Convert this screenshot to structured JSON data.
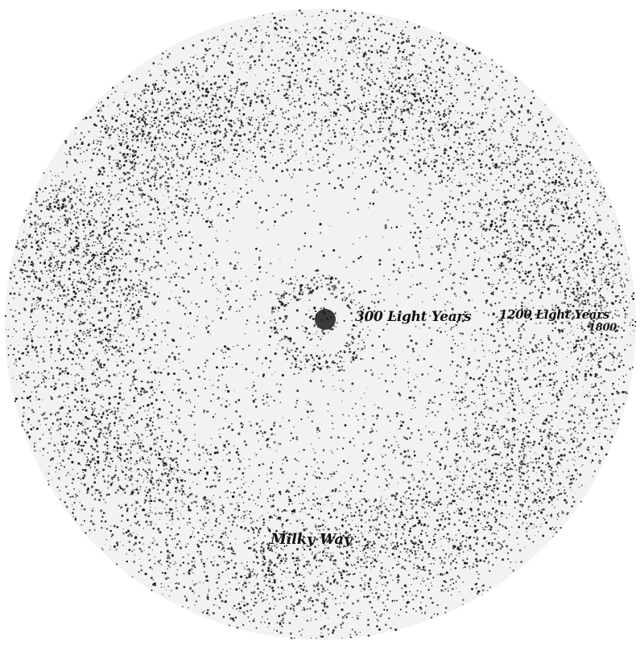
{
  "diagram": {
    "labels": {
      "inner_ring": "300 Light Years",
      "outer_distance": "1200 Light Years",
      "edge": "1800",
      "milky_way": "Milky Way"
    },
    "colors": {
      "background": "#ffffff",
      "ink": "#141414",
      "paper": "#f4f4f2"
    }
  }
}
